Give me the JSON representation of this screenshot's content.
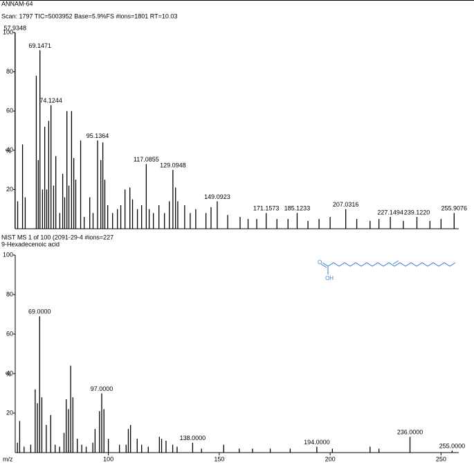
{
  "chart_data": [
    {
      "type": "stem",
      "title": "ANNAM-64",
      "subtitle": "Scan: 1797   TIC=5003952   Base=5.9%FS   #ions=1801   RT=10.03",
      "ylabel": "%",
      "color": "#000000",
      "xlim": [
        58,
        258
      ],
      "ylim": [
        0,
        100
      ],
      "yticks": [
        20,
        40,
        60,
        80,
        100
      ],
      "x": [
        57.9348,
        59.1,
        61.3,
        62.5,
        67.5,
        68.4,
        69.1471,
        70.3,
        71.3,
        72.2,
        73.1,
        74.1244,
        75.3,
        76.3,
        78.1,
        79.4,
        80.3,
        81.3,
        82.2,
        83.4,
        84.4,
        85.3,
        87.5,
        89.1,
        91.6,
        93.1,
        95.1364,
        96.6,
        97.5,
        98.4,
        99.7,
        101.9,
        104.1,
        105.6,
        107.5,
        109.7,
        110.9,
        113.1,
        115.0,
        117.0855,
        118.4,
        120.3,
        122.8,
        125.3,
        127.5,
        129.0948,
        130.3,
        131.3,
        134.4,
        136.9,
        139.4,
        144.0,
        146.3,
        149.0923,
        153.8,
        159.4,
        163.0,
        166.9,
        171.1573,
        176.0,
        181.0,
        185.1233,
        190.0,
        195.0,
        200.0,
        207.0316,
        212.0,
        218.0,
        222.0,
        227.1494,
        233.0,
        239.122,
        245.0,
        250.0,
        255.9076
      ],
      "values": [
        100,
        14,
        43,
        16,
        78,
        35,
        91,
        20,
        52,
        20,
        55,
        63,
        22,
        37,
        8,
        28,
        16,
        60,
        22,
        60,
        36,
        25,
        45,
        6,
        16,
        8,
        45,
        35,
        44,
        25,
        12,
        8,
        10,
        12,
        20,
        21,
        15,
        10,
        12,
        33,
        10,
        8,
        12,
        8,
        14,
        30,
        21,
        14,
        12,
        8,
        10,
        8,
        11,
        14,
        7,
        6,
        5,
        5,
        8,
        5,
        5,
        8,
        4,
        5,
        6,
        10,
        5,
        4,
        5,
        6,
        4,
        6,
        4,
        5,
        8
      ],
      "x_labels": [
        "57.9348",
        null,
        null,
        null,
        null,
        null,
        "69.1471",
        null,
        null,
        null,
        null,
        "74.1244",
        null,
        null,
        null,
        null,
        null,
        null,
        null,
        null,
        null,
        null,
        null,
        null,
        null,
        null,
        "95.1364",
        null,
        null,
        null,
        null,
        null,
        null,
        null,
        null,
        null,
        null,
        null,
        null,
        "117.0855",
        null,
        null,
        null,
        null,
        null,
        "129.0948",
        null,
        null,
        null,
        null,
        null,
        null,
        null,
        "149.0923",
        null,
        null,
        null,
        null,
        "171.1573",
        null,
        null,
        "185.1233",
        null,
        null,
        null,
        "207.0316",
        null,
        null,
        null,
        "227.1494",
        null,
        "239.1220",
        null,
        null,
        "255.9076"
      ]
    },
    {
      "type": "stem",
      "title": "NIST MS 1 of 100 (2091-29-4   #ions=227",
      "subtitle": "9-Hexadecenoic acid",
      "ylabel": "%",
      "xlabel": "m/z",
      "color": "#000000",
      "xlim": [
        58,
        258
      ],
      "ylim": [
        0,
        100
      ],
      "yticks": [
        20,
        40,
        60,
        80,
        100
      ],
      "xticks": [
        100,
        150,
        200,
        250
      ],
      "x": [
        59,
        60,
        62,
        65,
        67,
        68,
        69,
        70,
        72,
        74,
        76,
        78,
        80,
        81,
        82,
        83,
        84,
        86,
        88,
        90,
        93,
        94,
        96,
        97,
        98,
        100,
        105,
        108,
        109,
        110,
        113,
        115,
        118,
        123,
        124,
        126,
        129,
        131,
        138,
        142,
        152,
        159,
        165,
        173,
        182,
        194,
        201,
        218,
        222,
        236,
        255
      ],
      "values": [
        5,
        16,
        3,
        4,
        32,
        25,
        69,
        28,
        14,
        19,
        4,
        3,
        10,
        27,
        22,
        44,
        28,
        7,
        4,
        3,
        5,
        12,
        21,
        30,
        22,
        7,
        4,
        4,
        12,
        14,
        7,
        4,
        3,
        8,
        7,
        6,
        4,
        3,
        5,
        2,
        4,
        2,
        2,
        2,
        2,
        3,
        2,
        3,
        2,
        8,
        1
      ],
      "x_labels": [
        null,
        null,
        null,
        null,
        null,
        null,
        "69.0000",
        null,
        null,
        null,
        null,
        null,
        null,
        null,
        null,
        null,
        null,
        null,
        null,
        null,
        null,
        null,
        null,
        "97.0000",
        null,
        null,
        null,
        null,
        null,
        null,
        null,
        null,
        null,
        null,
        null,
        null,
        null,
        null,
        "138.0000",
        null,
        null,
        null,
        null,
        null,
        null,
        "194.0000",
        null,
        null,
        null,
        "236.0000",
        "255.0000"
      ]
    }
  ],
  "structure": {
    "labels": [
      "O",
      "OH"
    ]
  }
}
